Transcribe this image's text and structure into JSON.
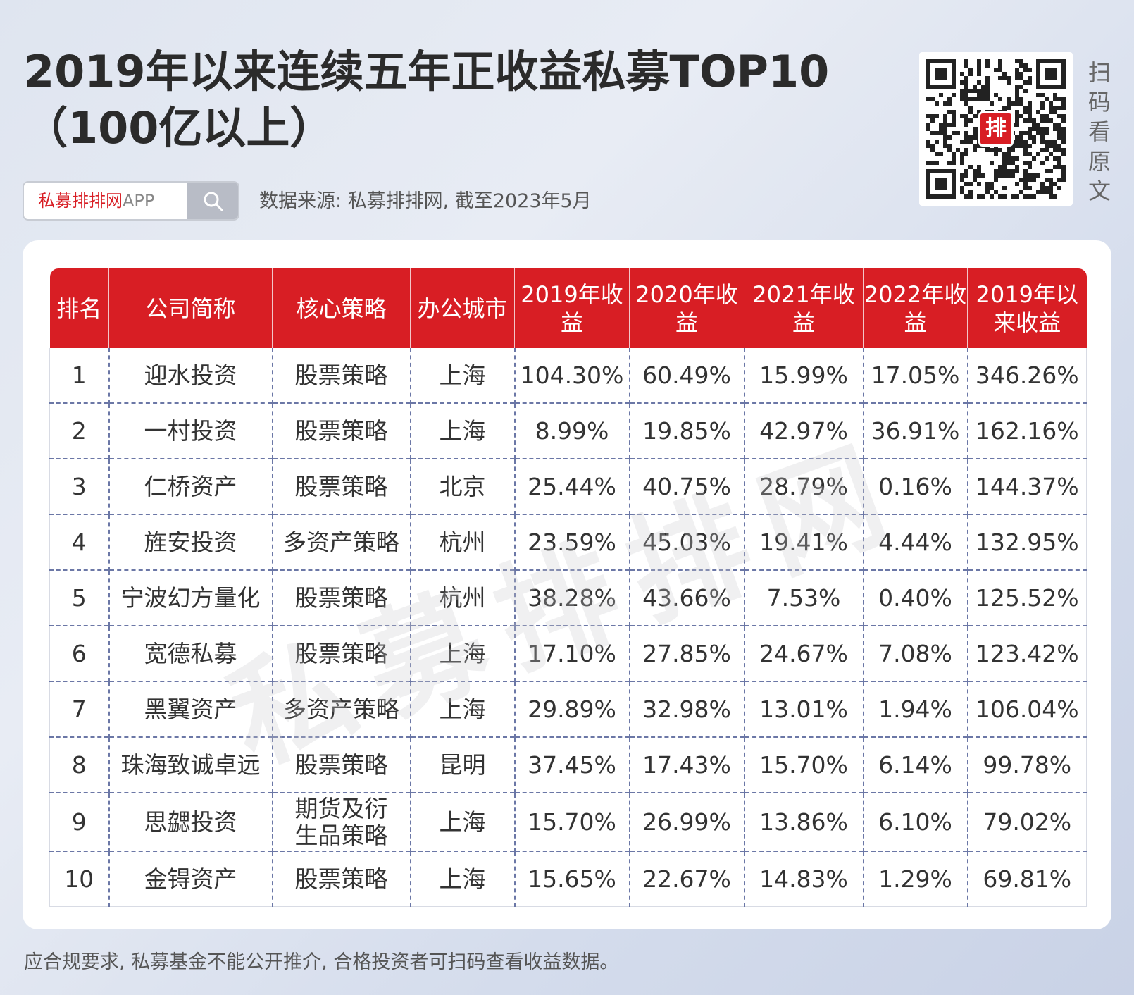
{
  "title": {
    "line1": "2019年以来连续五年正收益私募TOP10",
    "line2": "（100亿以上）"
  },
  "search": {
    "brand": "私募排排网",
    "app": "APP"
  },
  "source": "数据来源: 私募排排网, 截至2023年5月",
  "qr": {
    "badge": "排",
    "caption": [
      "扫",
      "码",
      "看",
      "原",
      "文"
    ]
  },
  "watermark": "私募排排网",
  "table": {
    "headers": [
      "排名",
      "公司简称",
      "核心策略",
      "办公城市",
      "2019年收益",
      "2020年收益",
      "2021年收益",
      "2022年收益",
      "2019年以来收益"
    ],
    "rows": [
      [
        "1",
        "迎水投资",
        "股票策略",
        "上海",
        "104.30%",
        "60.49%",
        "15.99%",
        "17.05%",
        "346.26%"
      ],
      [
        "2",
        "一村投资",
        "股票策略",
        "上海",
        "8.99%",
        "19.85%",
        "42.97%",
        "36.91%",
        "162.16%"
      ],
      [
        "3",
        "仁桥资产",
        "股票策略",
        "北京",
        "25.44%",
        "40.75%",
        "28.79%",
        "0.16%",
        "144.37%"
      ],
      [
        "4",
        "旌安投资",
        "多资产策略",
        "杭州",
        "23.59%",
        "45.03%",
        "19.41%",
        "4.44%",
        "132.95%"
      ],
      [
        "5",
        "宁波幻方量化",
        "股票策略",
        "杭州",
        "38.28%",
        "43.66%",
        "7.53%",
        "0.40%",
        "125.52%"
      ],
      [
        "6",
        "宽德私募",
        "股票策略",
        "上海",
        "17.10%",
        "27.85%",
        "24.67%",
        "7.08%",
        "123.42%"
      ],
      [
        "7",
        "黑翼资产",
        "多资产策略",
        "上海",
        "29.89%",
        "32.98%",
        "13.01%",
        "1.94%",
        "106.04%"
      ],
      [
        "8",
        "珠海致诚卓远",
        "股票策略",
        "昆明",
        "37.45%",
        "17.43%",
        "15.70%",
        "6.14%",
        "99.78%"
      ],
      [
        "9",
        "思勰投资",
        "期货及衍生品策略",
        "上海",
        "15.70%",
        "26.99%",
        "13.86%",
        "6.10%",
        "79.02%"
      ],
      [
        "10",
        "金锝资产",
        "股票策略",
        "上海",
        "15.65%",
        "22.67%",
        "14.83%",
        "1.29%",
        "69.81%"
      ]
    ]
  },
  "disclaimer": "应合规要求, 私募基金不能公开推介, 合格投资者可扫码查看收益数据。",
  "colors": {
    "header_red": "#d81e24",
    "dash_blue": "#6b77a6"
  }
}
